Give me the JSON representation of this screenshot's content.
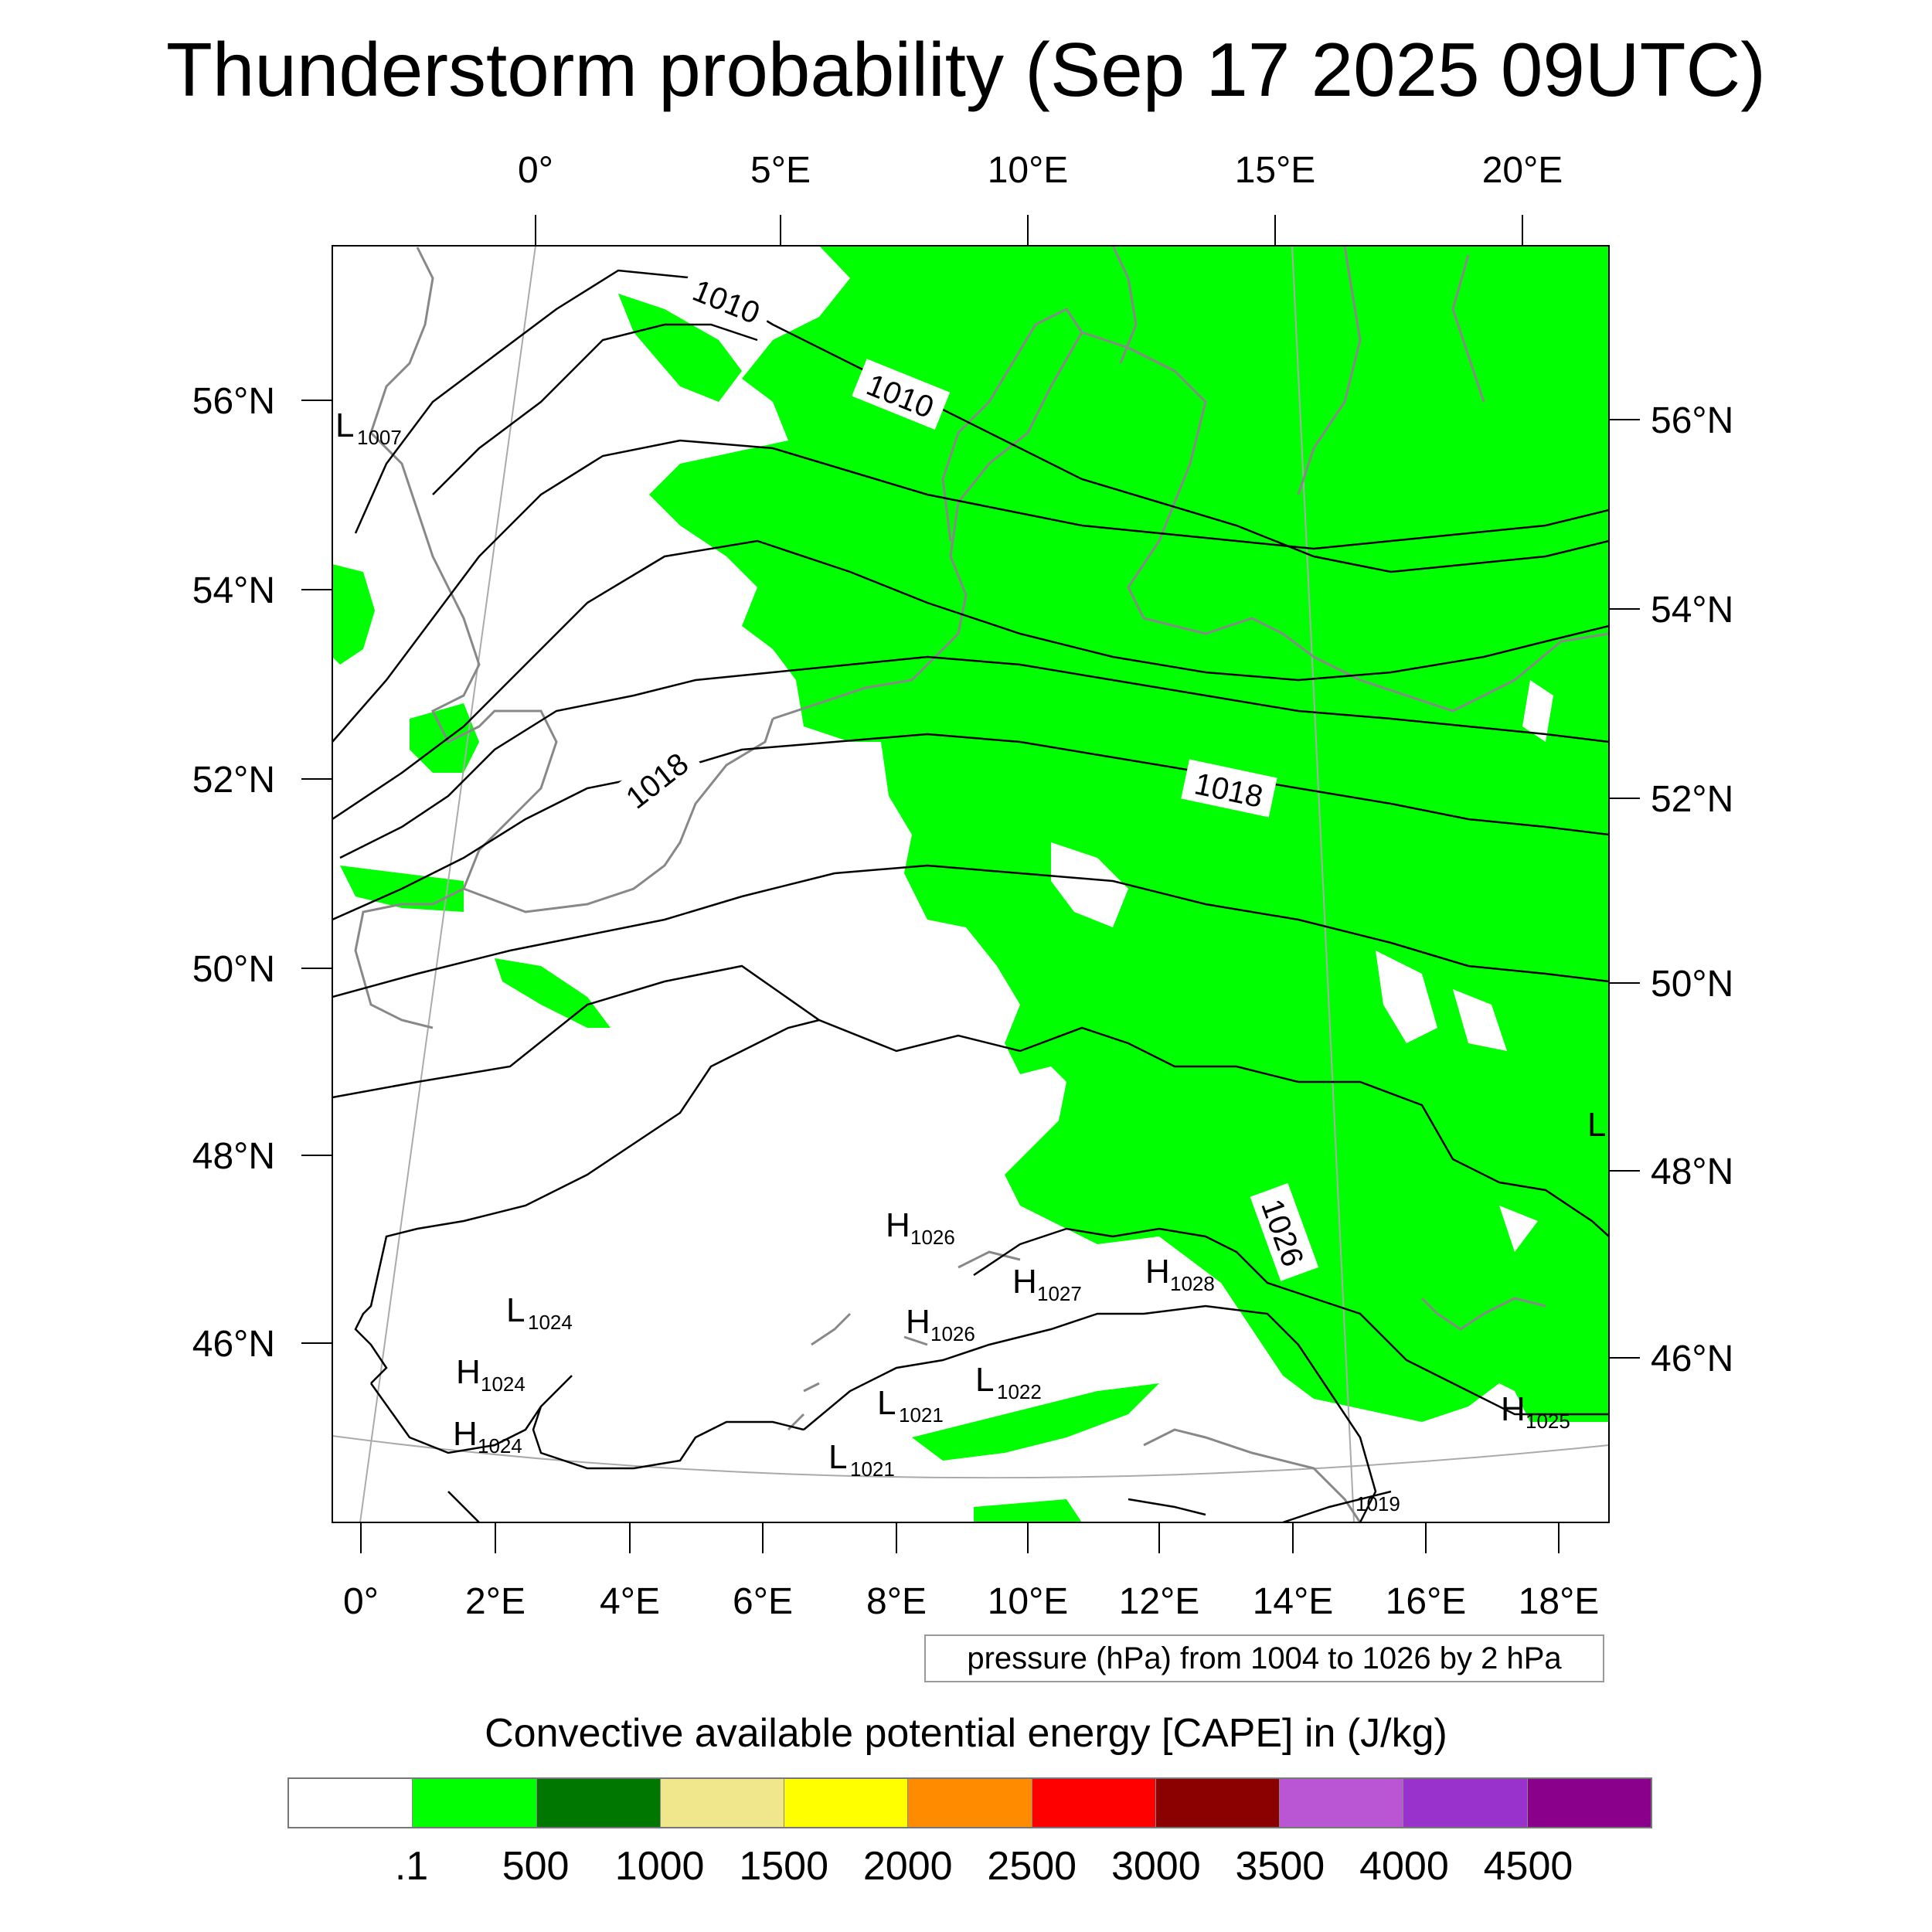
{
  "title": "Thunderstorm probability (Sep 17 2025 09UTC)",
  "map": {
    "top_lon_labels": [
      "0°",
      "5°E",
      "10°E",
      "15°E",
      "20°E"
    ],
    "bottom_lon_labels": [
      "0°",
      "2°E",
      "4°E",
      "6°E",
      "8°E",
      "10°E",
      "12°E",
      "14°E",
      "16°E",
      "18°E"
    ],
    "left_lat_labels": [
      "56°N",
      "54°N",
      "52°N",
      "50°N",
      "48°N",
      "46°N"
    ],
    "right_lat_labels": [
      "56°N",
      "54°N",
      "52°N",
      "50°N",
      "48°N",
      "46°N"
    ],
    "isobar_labels": [
      "1010",
      "1010",
      "1018",
      "1018",
      "1026"
    ],
    "pressure_centers": [
      {
        "letter": "L",
        "value": "1007"
      },
      {
        "letter": "L",
        "value": "1024"
      },
      {
        "letter": "H",
        "value": "1024"
      },
      {
        "letter": "H",
        "value": "1024"
      },
      {
        "letter": "H",
        "value": "1026"
      },
      {
        "letter": "H",
        "value": "1027"
      },
      {
        "letter": "H",
        "value": "1028"
      },
      {
        "letter": "H",
        "value": "1026"
      },
      {
        "letter": "L",
        "value": "1022"
      },
      {
        "letter": "L",
        "value": "1021"
      },
      {
        "letter": "L",
        "value": "1021"
      },
      {
        "letter": "H",
        "value": "1025"
      },
      {
        "letter": "L",
        "value": ""
      },
      {
        "letter": "",
        "value": "1019"
      }
    ],
    "colors": {
      "cape_fill": "#00ff00",
      "coastline": "#888888",
      "isobar": "#000000",
      "gridline": "#aaaaaa"
    }
  },
  "pressure_note": "pressure (hPa) from 1004 to 1026 by 2 hPa",
  "colorbar": {
    "title": "Convective available potential energy [CAPE] in (J/kg)",
    "colors": [
      "#ffffff",
      "#00ff00",
      "#007800",
      "#f0e68c",
      "#ffff00",
      "#ff8c00",
      "#ff0000",
      "#8b0000",
      "#ba55d3",
      "#9932cc",
      "#8b008b"
    ],
    "tick_labels": [
      ".1",
      "500",
      "1000",
      "1500",
      "2000",
      "2500",
      "3000",
      "3500",
      "4000",
      "4500"
    ]
  }
}
